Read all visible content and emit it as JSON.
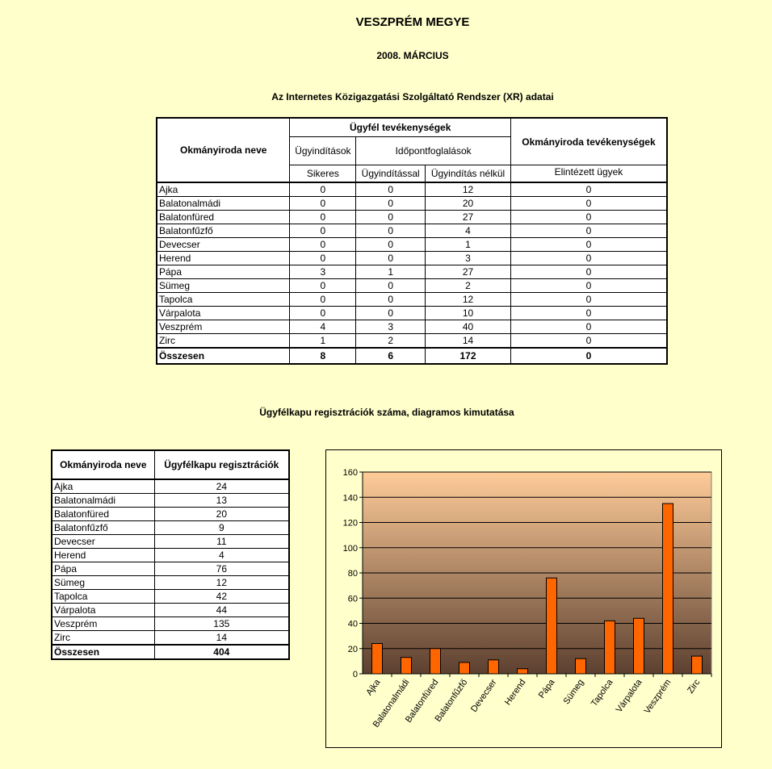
{
  "title": "VESZPRÉM MEGYE",
  "subtitle": "2008. MÁRCIUS",
  "xr_heading": "Az Internetes Közigazgatási Szolgáltató Rendszer (XR) adatai",
  "xr_table": {
    "col_office": "Okmányiroda neve",
    "group_client": "Ügyfél tevékenységek",
    "group_office": "Okmányiroda tevékenységek",
    "sub_initiations": "Ügyindítások",
    "sub_appointments": "Időpontfoglalások",
    "col_successful": "Sikeres",
    "col_with_init": "Ügyindítással",
    "col_without_init": "Ügyindítás nélkül",
    "col_completed": "Elintézett ügyek",
    "rows": [
      {
        "name": "Ajka",
        "sikeres": "0",
        "ugyinditassal": "0",
        "nelkul": "12",
        "elintezett": "0"
      },
      {
        "name": "Balatonalmádi",
        "sikeres": "0",
        "ugyinditassal": "0",
        "nelkul": "20",
        "elintezett": "0"
      },
      {
        "name": "Balatonfüred",
        "sikeres": "0",
        "ugyinditassal": "0",
        "nelkul": "27",
        "elintezett": "0"
      },
      {
        "name": "Balatonfűzfő",
        "sikeres": "0",
        "ugyinditassal": "0",
        "nelkul": "4",
        "elintezett": "0"
      },
      {
        "name": "Devecser",
        "sikeres": "0",
        "ugyinditassal": "0",
        "nelkul": "1",
        "elintezett": "0"
      },
      {
        "name": "Herend",
        "sikeres": "0",
        "ugyinditassal": "0",
        "nelkul": "3",
        "elintezett": "0"
      },
      {
        "name": "Pápa",
        "sikeres": "3",
        "ugyinditassal": "1",
        "nelkul": "27",
        "elintezett": "0"
      },
      {
        "name": "Sümeg",
        "sikeres": "0",
        "ugyinditassal": "0",
        "nelkul": "2",
        "elintezett": "0"
      },
      {
        "name": "Tapolca",
        "sikeres": "0",
        "ugyinditassal": "0",
        "nelkul": "12",
        "elintezett": "0"
      },
      {
        "name": "Várpalota",
        "sikeres": "0",
        "ugyinditassal": "0",
        "nelkul": "10",
        "elintezett": "0"
      },
      {
        "name": "Veszprém",
        "sikeres": "4",
        "ugyinditassal": "3",
        "nelkul": "40",
        "elintezett": "0"
      },
      {
        "name": "Zirc",
        "sikeres": "1",
        "ugyinditassal": "2",
        "nelkul": "14",
        "elintezett": "0"
      }
    ],
    "total": {
      "name": "Összesen",
      "sikeres": "8",
      "ugyinditassal": "6",
      "nelkul": "172",
      "elintezett": "0"
    }
  },
  "reg_heading": "Ügyfélkapu regisztrációk száma, diagramos kimutatása",
  "reg_table": {
    "col_office": "Okmányiroda neve",
    "col_reg": "Ügyfélkapu regisztrációk",
    "rows": [
      {
        "name": "Ajka",
        "value": "24"
      },
      {
        "name": "Balatonalmádi",
        "value": "13"
      },
      {
        "name": "Balatonfüred",
        "value": "20"
      },
      {
        "name": "Balatonfűzfő",
        "value": "9"
      },
      {
        "name": "Devecser",
        "value": "11"
      },
      {
        "name": "Herend",
        "value": "4"
      },
      {
        "name": "Pápa",
        "value": "76"
      },
      {
        "name": "Sümeg",
        "value": "12"
      },
      {
        "name": "Tapolca",
        "value": "42"
      },
      {
        "name": "Várpalota",
        "value": "44"
      },
      {
        "name": "Veszprém",
        "value": "135"
      },
      {
        "name": "Zirc",
        "value": "14"
      }
    ],
    "total": {
      "name": "Összesen",
      "value": "404"
    }
  },
  "chart_data": {
    "type": "bar",
    "categories": [
      "Ajka",
      "Balatonalmádi",
      "Balatonfüred",
      "Balatonfűzfő",
      "Devecser",
      "Herend",
      "Pápa",
      "Sümeg",
      "Tapolca",
      "Várpalota",
      "Veszprém",
      "Zirc"
    ],
    "values": [
      24,
      13,
      20,
      9,
      11,
      4,
      76,
      12,
      42,
      44,
      135,
      14
    ],
    "ylim": [
      0,
      160
    ],
    "yticks": [
      0,
      20,
      40,
      60,
      80,
      100,
      120,
      140,
      160
    ],
    "grid": true,
    "legend": "none",
    "bar_color": "#FF6600",
    "plot_gradient": [
      "#FFCC99",
      "#5C4030"
    ]
  }
}
